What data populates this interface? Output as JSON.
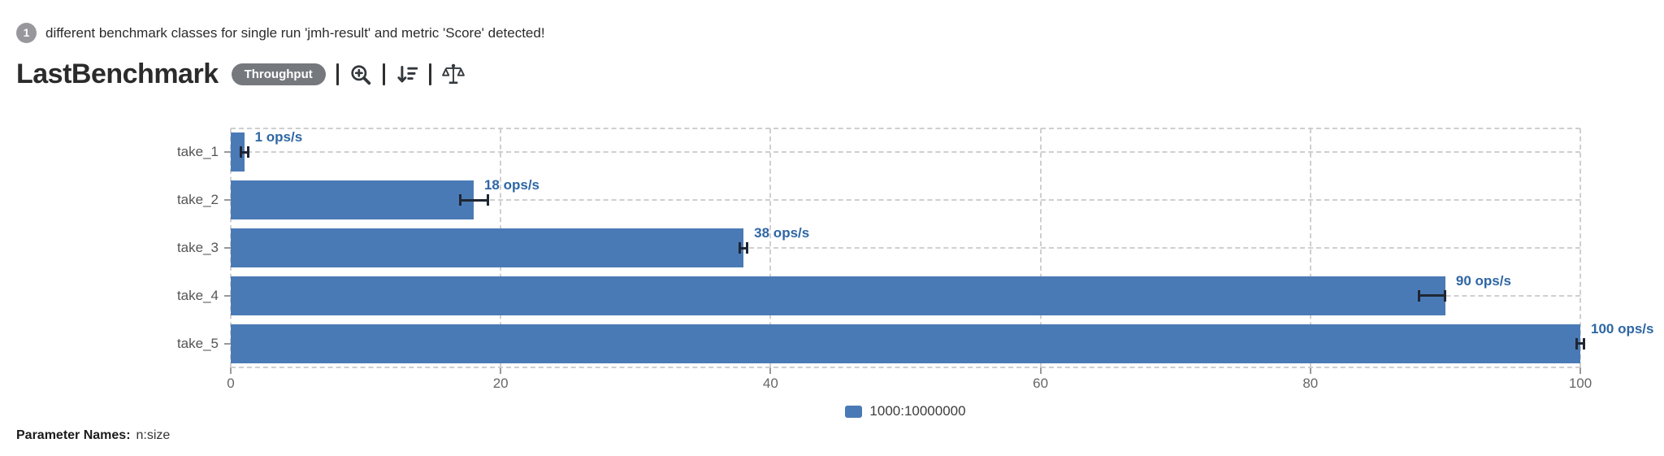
{
  "notice": {
    "badge_count": "1",
    "text": "different benchmark classes for single run 'jmh-result' and metric 'Score' detected!"
  },
  "header": {
    "title": "LastBenchmark",
    "metric_badge": "Throughput",
    "toolbar_icons": [
      "zoom-in",
      "sort-amount-down",
      "compare-scales"
    ]
  },
  "chart_data": {
    "type": "bar",
    "orientation": "horizontal",
    "title": "LastBenchmark",
    "categories": [
      "take_1",
      "take_2",
      "take_3",
      "take_4",
      "take_5"
    ],
    "series": [
      {
        "name": "1000:10000000",
        "values": [
          1,
          18,
          38,
          90,
          100
        ],
        "value_labels": [
          "1 ops/s",
          "18 ops/s",
          "38 ops/s",
          "90 ops/s",
          "100 ops/s"
        ],
        "error_ranges": [
          [
            0.7,
            1.3
          ],
          [
            17,
            19.1
          ],
          [
            37.7,
            38.3
          ],
          [
            88,
            90
          ],
          [
            99.7,
            100.3
          ]
        ]
      }
    ],
    "unit": "ops/s",
    "xlabel": "",
    "ylabel": "",
    "xlim": [
      0,
      100
    ],
    "xticks": [
      0,
      20,
      40,
      60,
      80,
      100
    ],
    "grid": "dashed",
    "legend_position": "bottom-center",
    "colors": {
      "bar": "#4a7ab5",
      "value_label": "#2e66a4",
      "error_bar": "#1f2633",
      "gridline": "#cfcfcf",
      "axis_text": "#666666",
      "category_text": "#555555"
    }
  },
  "footer": {
    "label": "Parameter Names:",
    "value": "n:size"
  }
}
